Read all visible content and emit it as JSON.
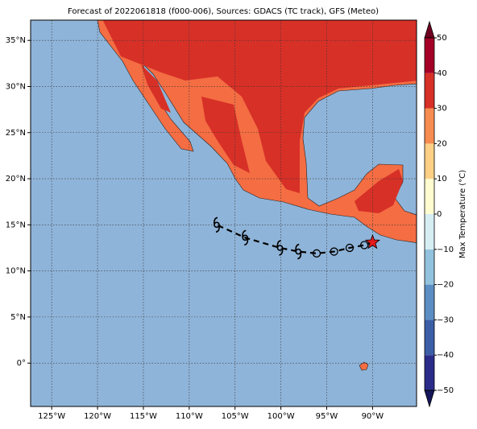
{
  "chart_data": {
    "type": "map",
    "title": "Forecast of 2022061818 (f000-006), Sources: GDACS (TC track), GFS (Meteo)",
    "xlim": [
      -127.3,
      -85.2
    ],
    "ylim": [
      -4.7,
      37.2
    ],
    "xticks": [
      {
        "value": -125,
        "label": "125°W"
      },
      {
        "value": -120,
        "label": "120°W"
      },
      {
        "value": -115,
        "label": "115°W"
      },
      {
        "value": -110,
        "label": "110°W"
      },
      {
        "value": -105,
        "label": "105°W"
      },
      {
        "value": -100,
        "label": "100°W"
      },
      {
        "value": -95,
        "label": "95°W"
      },
      {
        "value": -90,
        "label": "90°W"
      }
    ],
    "yticks": [
      {
        "value": 0,
        "label": "0°"
      },
      {
        "value": 5,
        "label": "5°N"
      },
      {
        "value": 10,
        "label": "10°N"
      },
      {
        "value": 15,
        "label": "15°N"
      },
      {
        "value": 20,
        "label": "20°N"
      },
      {
        "value": 25,
        "label": "25°N"
      },
      {
        "value": 30,
        "label": "30°N"
      },
      {
        "value": 35,
        "label": "35°N"
      }
    ],
    "grid": true,
    "track": {
      "lon": [
        -90.0,
        -90.9,
        -92.5,
        -94.2,
        -96.1,
        -98.1,
        -100.1,
        -103.9,
        -107.0
      ],
      "lat": [
        13.1,
        12.8,
        12.5,
        12.1,
        11.9,
        12.1,
        12.5,
        13.6,
        15.0
      ],
      "symbols": [
        "star",
        "circle",
        "circle",
        "circle",
        "circle",
        "hurricane",
        "hurricane",
        "hurricane",
        "hurricane"
      ]
    },
    "colorbar": {
      "label": "Max Temperature (°C)",
      "lim": [
        -50,
        50
      ],
      "ticks": [
        {
          "value": -50,
          "label": "−50"
        },
        {
          "value": -40,
          "label": "−40"
        },
        {
          "value": -30,
          "label": "−30"
        },
        {
          "value": -20,
          "label": "−20"
        },
        {
          "value": -10,
          "label": "−10"
        },
        0,
        10,
        20,
        30,
        40,
        50
      ],
      "colors": [
        "#2b2c8a",
        "#3c5ea7",
        "#5b8ec3",
        "#92c2dd",
        "#d6edf2",
        "#fffccf",
        "#fdd086",
        "#f68c50",
        "#d73027",
        "#a50026"
      ],
      "extend_colors": [
        "#15165a",
        "#6e0020"
      ]
    }
  }
}
